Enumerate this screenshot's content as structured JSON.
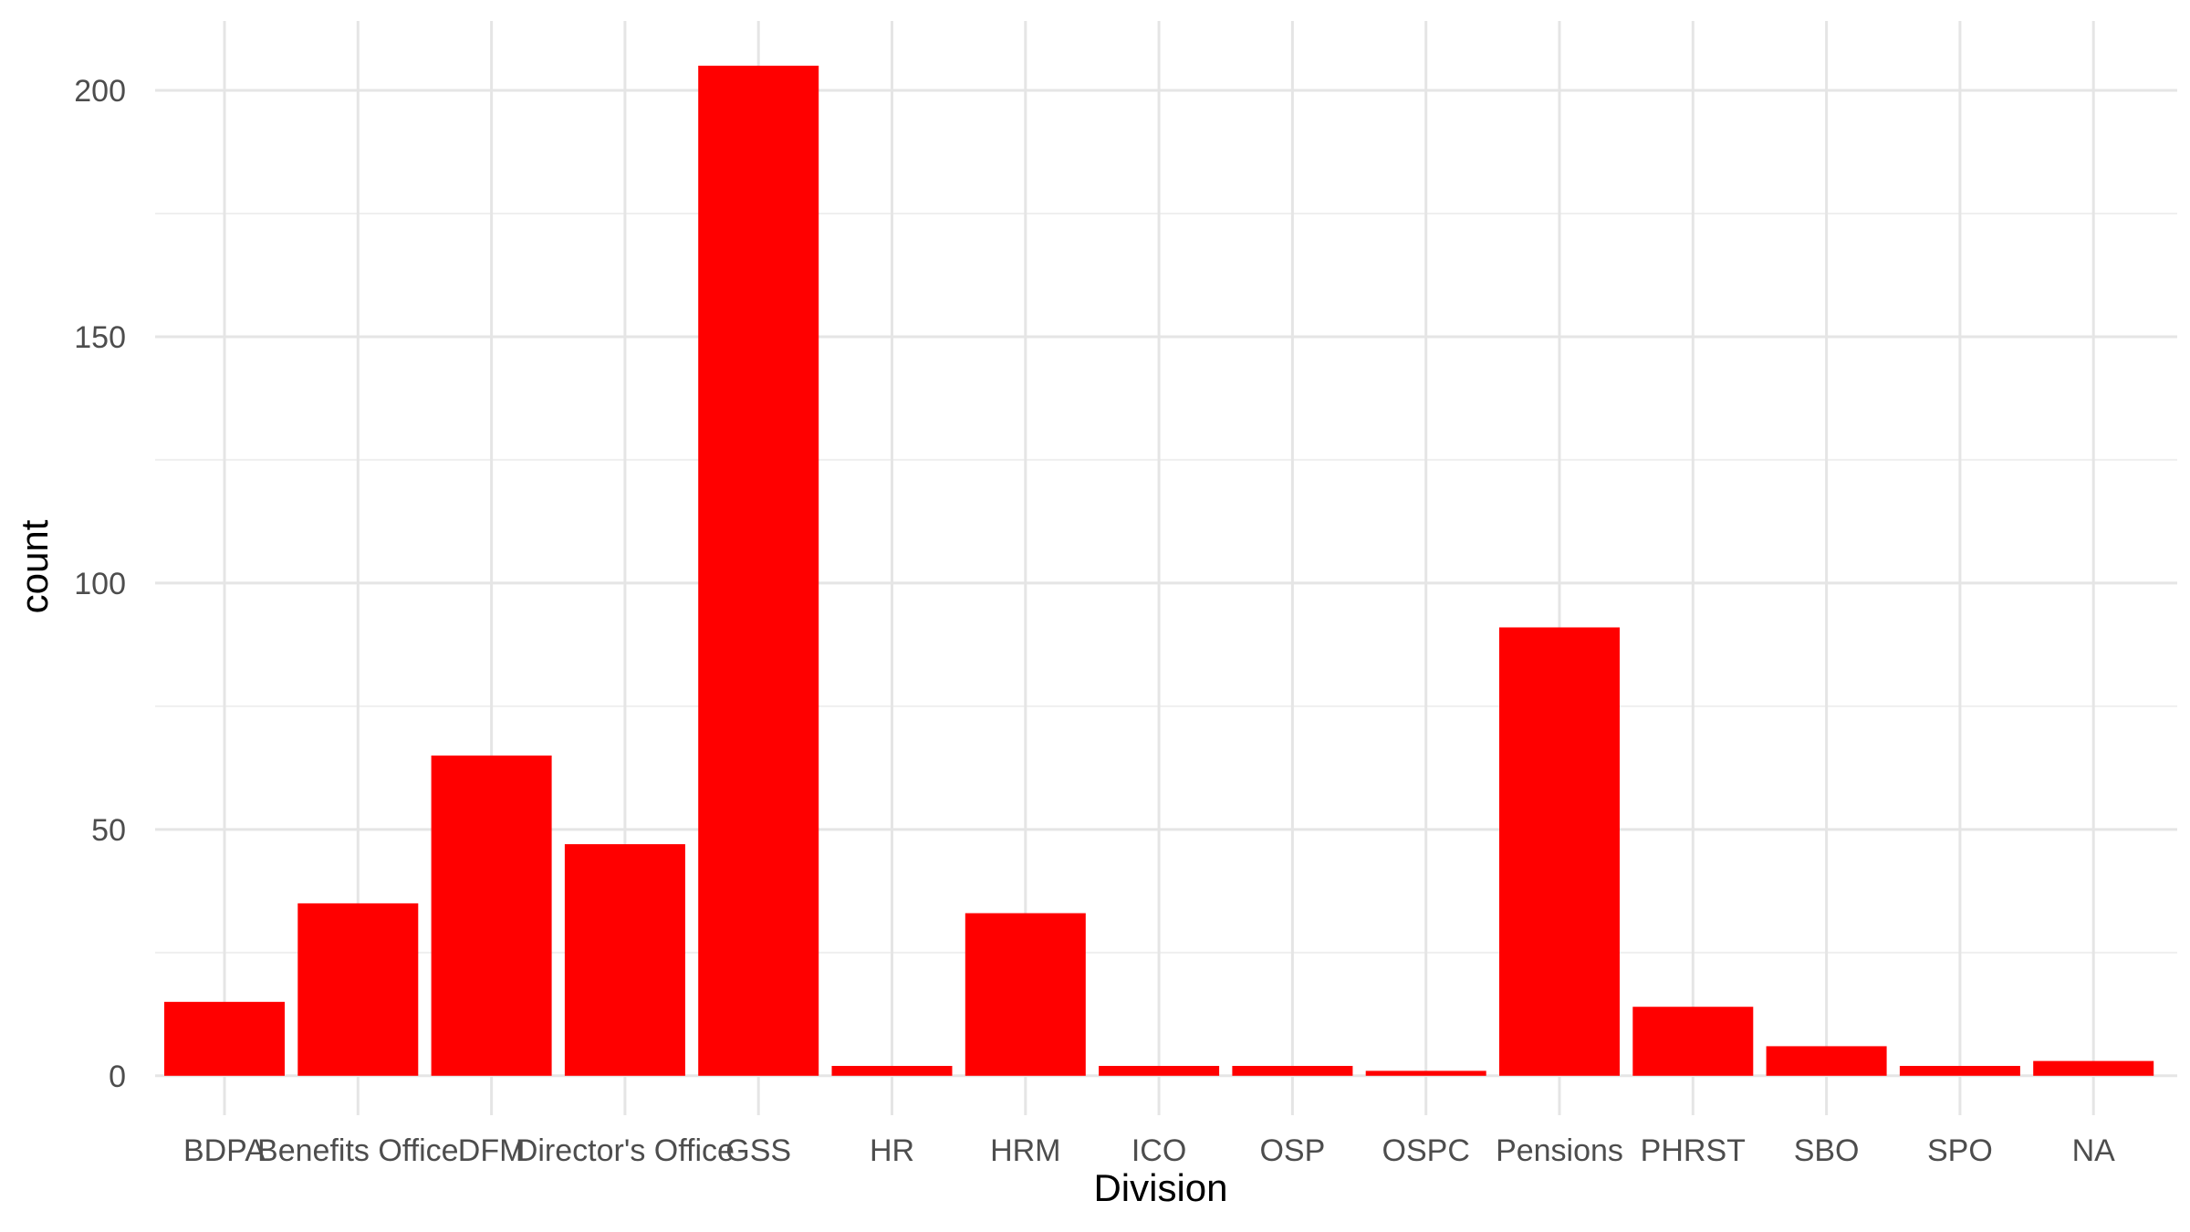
{
  "chart_data": {
    "type": "bar",
    "xlabel": "Division",
    "ylabel": "count",
    "categories": [
      "BDPA",
      "Benefits Office",
      "DFM",
      "Director's Office",
      "GSS",
      "HR",
      "HRM",
      "ICO",
      "OSP",
      "OSPC",
      "Pensions",
      "PHRST",
      "SBO",
      "SPO",
      "NA"
    ],
    "values": [
      15,
      35,
      65,
      47,
      205,
      2,
      33,
      2,
      2,
      1,
      91,
      14,
      6,
      2,
      3
    ],
    "ylim": [
      -8,
      215
    ],
    "yticks": [
      0,
      50,
      100,
      150,
      200
    ],
    "grid": true,
    "bar_color": "#ff0000",
    "legend": "none"
  }
}
